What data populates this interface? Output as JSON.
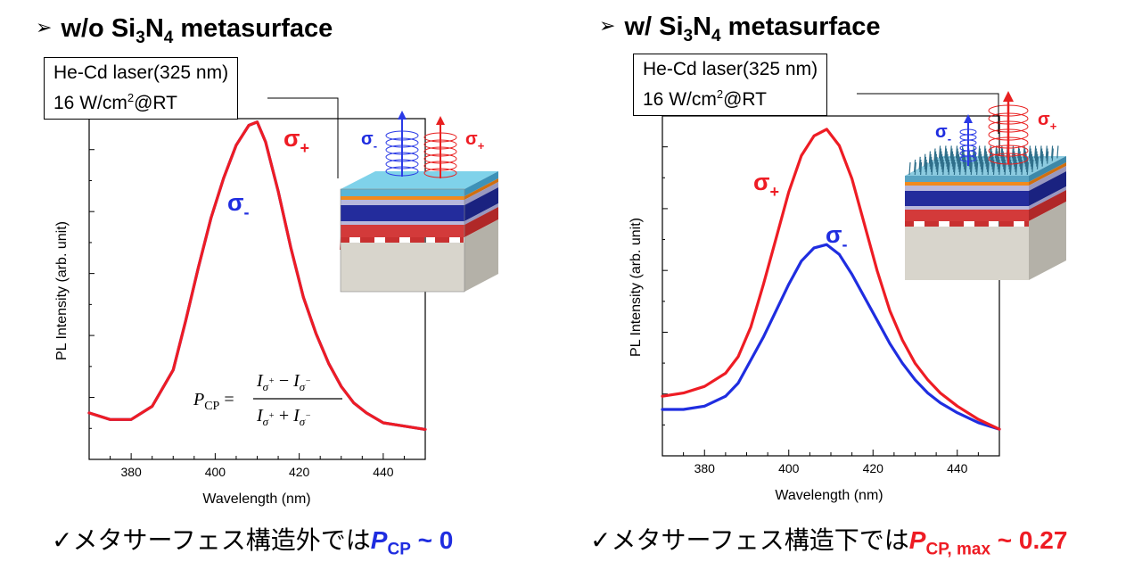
{
  "colors": {
    "sigma_plus": "#ee1c24",
    "sigma_minus": "#1f2de0",
    "blue_value": "#1f2de0",
    "red_value": "#ee1c24"
  },
  "left": {
    "heading": {
      "marker": "➢",
      "pre": "w/o Si",
      "s1": "3",
      "mid": "N",
      "s2": "4",
      "post": " metasurface"
    },
    "laser": {
      "line1": "He-Cd laser(325 nm)",
      "line2_pre": "16 W/cm",
      "line2_sup": "2",
      "line2_post": "@RT"
    },
    "conclusion": {
      "check": "✓",
      "text": "メタサーフェス構造外では",
      "p": "P",
      "sub": "CP",
      "value": " ~ 0"
    },
    "formula": {
      "lhs": "P",
      "lhs_sub": "CP",
      "num": "I",
      "den": "I"
    }
  },
  "right": {
    "heading": {
      "marker": "➢",
      "pre": "w/ Si",
      "s1": "3",
      "mid": "N",
      "s2": "4",
      "post": " metasurface"
    },
    "laser": {
      "line1": "He-Cd laser(325 nm)",
      "line2_pre": "16 W/cm",
      "line2_sup": "2",
      "line2_post": "@RT"
    },
    "conclusion": {
      "check": "✓",
      "text": "メタサーフェス構造下では",
      "p": "P",
      "sub": "CP, max",
      "value": " ~ 0.27"
    }
  },
  "chart_data": [
    {
      "type": "line",
      "xlabel": "Wavelength (nm)",
      "ylabel": "PL Intensity (arb. unit)",
      "xlim": [
        370,
        450
      ],
      "x_ticks": [
        380,
        400,
        420,
        440
      ],
      "series": [
        {
          "name": "σ+",
          "color": "#ee1c24",
          "x": [
            370,
            375,
            380,
            385,
            390,
            393,
            396,
            399,
            402,
            405,
            408,
            410,
            412,
            415,
            418,
            421,
            424,
            427,
            430,
            433,
            436,
            440,
            445,
            450
          ],
          "y": [
            0.12,
            0.1,
            0.1,
            0.14,
            0.25,
            0.4,
            0.56,
            0.71,
            0.83,
            0.93,
            0.99,
            1.0,
            0.94,
            0.79,
            0.62,
            0.47,
            0.36,
            0.27,
            0.2,
            0.15,
            0.12,
            0.09,
            0.08,
            0.07
          ]
        },
        {
          "name": "σ-",
          "color": "#1f2de0",
          "x": [
            370,
            375,
            380,
            385,
            390,
            393,
            396,
            399,
            402,
            405,
            408,
            410,
            412,
            415,
            418,
            421,
            424,
            427,
            430,
            433,
            436,
            440,
            445,
            450
          ],
          "y": [
            0.12,
            0.1,
            0.1,
            0.14,
            0.25,
            0.4,
            0.56,
            0.71,
            0.83,
            0.93,
            0.99,
            1.0,
            0.94,
            0.79,
            0.62,
            0.47,
            0.36,
            0.27,
            0.2,
            0.15,
            0.12,
            0.09,
            0.08,
            0.07
          ]
        }
      ]
    },
    {
      "type": "line",
      "xlabel": "Wavelength (nm)",
      "ylabel": "PL Intensity (arb. unit)",
      "xlim": [
        370,
        450
      ],
      "x_ticks": [
        380,
        400,
        420,
        440
      ],
      "series": [
        {
          "name": "σ+",
          "color": "#ee1c24",
          "x": [
            370,
            375,
            380,
            385,
            388,
            391,
            394,
            397,
            400,
            403,
            406,
            409,
            412,
            415,
            418,
            421,
            424,
            427,
            430,
            433,
            436,
            440,
            445,
            450
          ],
          "y": [
            0.16,
            0.17,
            0.19,
            0.23,
            0.28,
            0.37,
            0.5,
            0.64,
            0.78,
            0.89,
            0.95,
            0.97,
            0.92,
            0.82,
            0.68,
            0.54,
            0.42,
            0.33,
            0.26,
            0.21,
            0.17,
            0.13,
            0.09,
            0.06
          ]
        },
        {
          "name": "σ-",
          "color": "#1f2de0",
          "x": [
            370,
            375,
            380,
            385,
            388,
            391,
            394,
            397,
            400,
            403,
            406,
            409,
            412,
            415,
            418,
            421,
            424,
            427,
            430,
            433,
            436,
            440,
            445,
            450
          ],
          "y": [
            0.12,
            0.12,
            0.13,
            0.16,
            0.2,
            0.27,
            0.34,
            0.42,
            0.5,
            0.57,
            0.61,
            0.62,
            0.59,
            0.53,
            0.46,
            0.39,
            0.32,
            0.26,
            0.21,
            0.17,
            0.14,
            0.11,
            0.08,
            0.06
          ]
        }
      ]
    }
  ]
}
